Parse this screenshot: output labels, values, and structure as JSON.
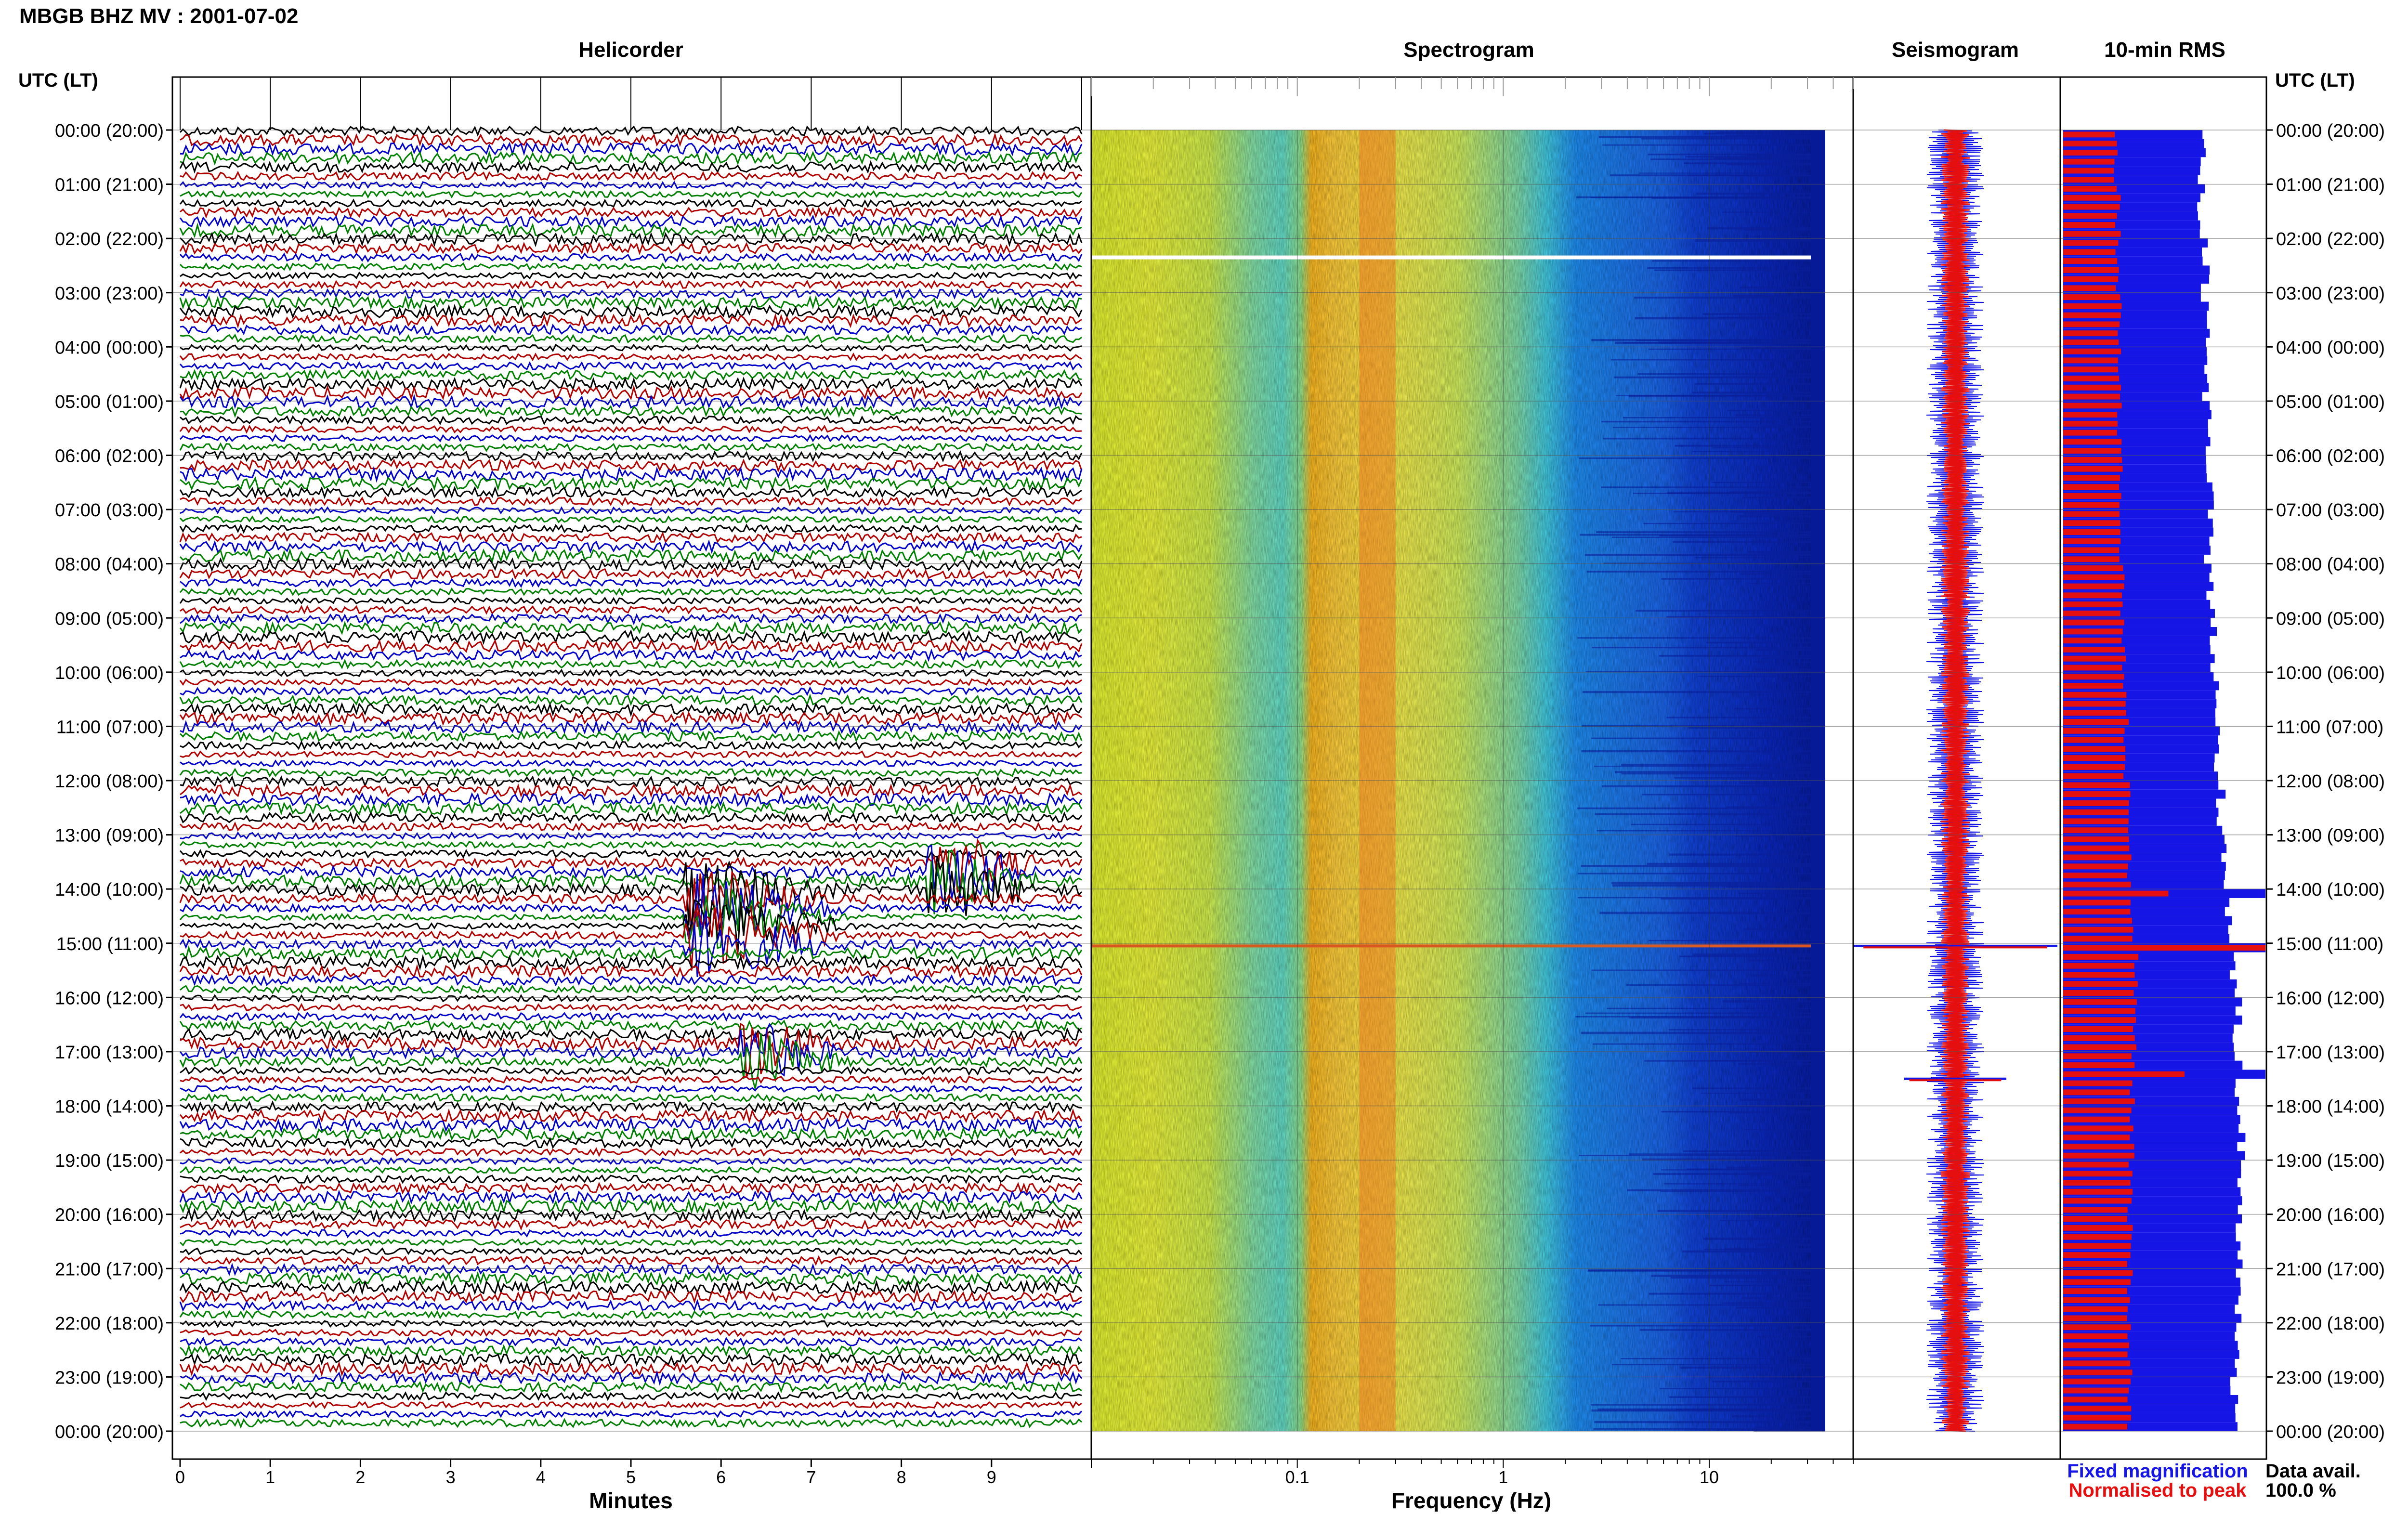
{
  "header": {
    "title": "MBGB BHZ MV : 2001-07-02",
    "left_axis_label": "UTC (LT)",
    "right_axis_label": "UTC (LT)"
  },
  "panels": {
    "helicorder": "Helicorder",
    "spectrogram": "Spectrogram",
    "seismogram": "Seismogram",
    "rms": "10-min RMS"
  },
  "legend": {
    "fixed": "Fixed magnification",
    "normalised": "Normalised to peak",
    "fixed_color": "#1515e6",
    "normalised_color": "#e60f0f"
  },
  "availability": {
    "label": "Data avail.",
    "value": "100.0 %"
  },
  "time_labels": [
    "00:00 (20:00)",
    "01:00 (21:00)",
    "02:00 (22:00)",
    "03:00 (23:00)",
    "04:00 (00:00)",
    "05:00 (01:00)",
    "06:00 (02:00)",
    "07:00 (03:00)",
    "08:00 (04:00)",
    "09:00 (05:00)",
    "10:00 (06:00)",
    "11:00 (07:00)",
    "12:00 (08:00)",
    "13:00 (09:00)",
    "14:00 (10:00)",
    "15:00 (11:00)",
    "16:00 (12:00)",
    "17:00 (13:00)",
    "18:00 (14:00)",
    "19:00 (15:00)",
    "20:00 (16:00)",
    "21:00 (17:00)",
    "22:00 (18:00)",
    "23:00 (19:00)",
    "00:00 (20:00)"
  ],
  "chart_data": [
    {
      "type": "line",
      "panel": "Helicorder",
      "xlabel": "Minutes",
      "x_ticks": [
        "0",
        "1",
        "2",
        "3",
        "4",
        "5",
        "6",
        "7",
        "8",
        "9"
      ],
      "xlim": [
        0,
        10
      ],
      "trace_colors": [
        "#000000",
        "#b00000",
        "#0000c8",
        "#008000"
      ],
      "events": [
        {
          "hour_start": 14,
          "hour_end": 15.1,
          "minute_start": 5.6,
          "minute_end": 7.4,
          "color": "#0000c8"
        },
        {
          "hour_start": 13.5,
          "hour_end": 14,
          "minute_start": 8.3,
          "minute_end": 9.6,
          "color": "#008000"
        },
        {
          "hour_start": 16.8,
          "hour_end": 17.3,
          "minute_start": 6.2,
          "minute_end": 7.4,
          "color": "#000000"
        }
      ]
    },
    {
      "type": "heatmap",
      "panel": "Spectrogram",
      "xlabel": "Frequency (Hz)",
      "x_scale": "log",
      "x_ticks": [
        "0.1",
        "1",
        "10"
      ],
      "xlim": [
        0.01,
        50
      ],
      "peak_band_hz": [
        0.2,
        0.3
      ],
      "gap_hour": 2.35,
      "event_hour": 15.05
    },
    {
      "type": "line",
      "panel": "Seismogram",
      "events": [
        {
          "hour": 15.05,
          "amplitude_relative": 1.0
        },
        {
          "hour": 17.5,
          "amplitude_relative": 0.5
        }
      ]
    },
    {
      "type": "bar",
      "panel": "10-min RMS",
      "series": [
        {
          "name": "Fixed magnification",
          "color": "#1515e6",
          "hourly_levels": [
            0.68,
            0.68,
            0.7,
            0.7,
            0.71,
            0.71,
            0.72,
            0.72,
            0.73,
            0.74,
            0.75,
            0.76,
            0.78,
            0.8,
            0.82,
            0.84,
            0.86,
            0.87,
            0.88,
            0.88,
            0.87,
            0.86,
            0.86,
            0.85
          ]
        },
        {
          "name": "Normalised to peak",
          "color": "#e60f0f",
          "hourly_levels": [
            0.26,
            0.27,
            0.27,
            0.28,
            0.28,
            0.28,
            0.29,
            0.29,
            0.29,
            0.3,
            0.31,
            0.31,
            0.32,
            0.33,
            0.34,
            0.36,
            0.35,
            0.34,
            0.34,
            0.33,
            0.33,
            0.33,
            0.33,
            0.33
          ]
        }
      ],
      "spikes": [
        {
          "hour": 15.05,
          "fixed": 1.0,
          "normalised": 1.0
        },
        {
          "hour": 14.0,
          "fixed": 1.0,
          "normalised": 0.52
        },
        {
          "hour": 17.4,
          "fixed": 1.0,
          "normalised": 0.6
        }
      ]
    }
  ]
}
